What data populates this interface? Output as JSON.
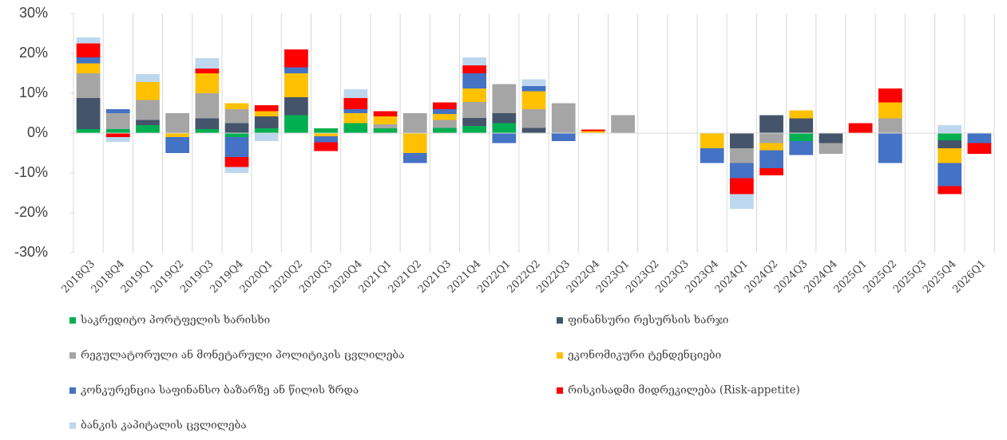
{
  "chart_data": {
    "type": "stacked-bar",
    "categories": [
      "2018Q3",
      "2018Q4",
      "2019Q1",
      "2019Q2",
      "2019Q3",
      "2019Q4",
      "2020Q1",
      "2020Q2",
      "2020Q3",
      "2020Q4",
      "2021Q1",
      "2021Q2",
      "2021Q3",
      "2021Q4",
      "2022Q1",
      "2022Q2",
      "2022Q3",
      "2022Q4",
      "2023Q1",
      "2023Q2",
      "2023Q3",
      "2023Q4",
      "2024Q1",
      "2024Q2",
      "2024Q3",
      "2024Q4",
      "2025Q1",
      "2025Q2",
      "2025Q3",
      "2025Q4",
      "2026Q1"
    ],
    "series": [
      {
        "name": "საკრედიტო პორტფელის ხარისხი",
        "color": "#00b050",
        "values": [
          1,
          1,
          2,
          0,
          1,
          -1,
          1.2,
          4.5,
          1.2,
          2.5,
          1.2,
          0,
          1.3,
          1.8,
          2.5,
          0,
          0,
          0,
          0,
          0,
          0,
          0,
          0,
          0,
          -2,
          0,
          0,
          0,
          0,
          -1.8,
          0
        ]
      },
      {
        "name": "ფინანსური რესურსის ხარჯი",
        "color": "#44546a",
        "values": [
          7.8,
          0,
          1.3,
          0,
          2.7,
          2.5,
          3,
          4.5,
          0,
          0,
          0,
          0,
          0,
          2,
          2.5,
          1.3,
          0,
          0,
          0,
          0,
          0,
          0,
          -3.8,
          4.5,
          3.7,
          -2.5,
          0,
          0,
          0,
          -2,
          0
        ]
      },
      {
        "name": "რეგულატორული ან მონეტარული პოლიტიკის ცვლილება",
        "color": "#a5a5a5",
        "values": [
          6.2,
          4,
          5,
          5,
          6.3,
          3.5,
          0,
          0,
          0,
          0,
          1,
          5,
          2,
          4,
          7.3,
          4.7,
          7.5,
          0,
          4.5,
          0,
          0,
          0,
          -3.7,
          -2.5,
          0,
          -2.7,
          0,
          3.7,
          0,
          0,
          0
        ]
      },
      {
        "name": "ეკონომიკური ტენდენციები",
        "color": "#ffc000",
        "values": [
          2.5,
          0,
          4.5,
          -1,
          5,
          1.5,
          1.3,
          6,
          -0.8,
          2.5,
          2,
          -5,
          1.5,
          3.4,
          0,
          4.5,
          0,
          0.5,
          0,
          0,
          0,
          -3.8,
          0,
          -1.8,
          2,
          0,
          0,
          4,
          0,
          -3.7,
          0
        ]
      },
      {
        "name": "კონკურენცია საფინანსო ბაზარზე ან წილის ზრდა",
        "color": "#4472c4",
        "values": [
          1.5,
          1,
          0,
          -4,
          0,
          -5,
          0,
          1.5,
          -1.5,
          1,
          0,
          -2.5,
          1.2,
          3.8,
          -2.5,
          1.3,
          -2,
          0,
          0,
          0,
          0,
          -3.7,
          -3.8,
          -4.5,
          -3.5,
          0,
          0,
          -7.5,
          0,
          -5.8,
          -2.5
        ]
      },
      {
        "name": "რისკისადმი მიდრეკილება (Risk-appetite)",
        "color": "#ff0000",
        "values": [
          3.5,
          -1,
          0,
          0,
          1.2,
          -2.5,
          1.5,
          4.5,
          -2.2,
          2.8,
          1.3,
          0,
          1.7,
          2,
          0,
          0,
          0,
          0.4,
          0,
          0,
          0,
          0,
          -4,
          -1.8,
          0,
          0,
          2.5,
          3.5,
          0,
          -2,
          -2.7
        ]
      },
      {
        "name": "ბანკის კაპიტალის ცვლილება",
        "color": "#bdd7ee",
        "values": [
          1.5,
          -1.2,
          2,
          0,
          2.6,
          -1.5,
          -2,
          0,
          0,
          2.2,
          0,
          0,
          0,
          2,
          0,
          1.7,
          0,
          0,
          0,
          0,
          0,
          0,
          -3.7,
          0,
          0,
          0,
          0,
          0,
          0,
          2,
          0
        ]
      }
    ],
    "ylim": [
      -30,
      30
    ],
    "yticks": [
      {
        "value": -30,
        "label": "-30%"
      },
      {
        "value": -20,
        "label": "-20%"
      },
      {
        "value": -10,
        "label": "-10%"
      },
      {
        "value": 0,
        "label": "0%"
      },
      {
        "value": 10,
        "label": "10%"
      },
      {
        "value": 20,
        "label": "20%"
      },
      {
        "value": 30,
        "label": "30%"
      }
    ],
    "grid": false
  }
}
